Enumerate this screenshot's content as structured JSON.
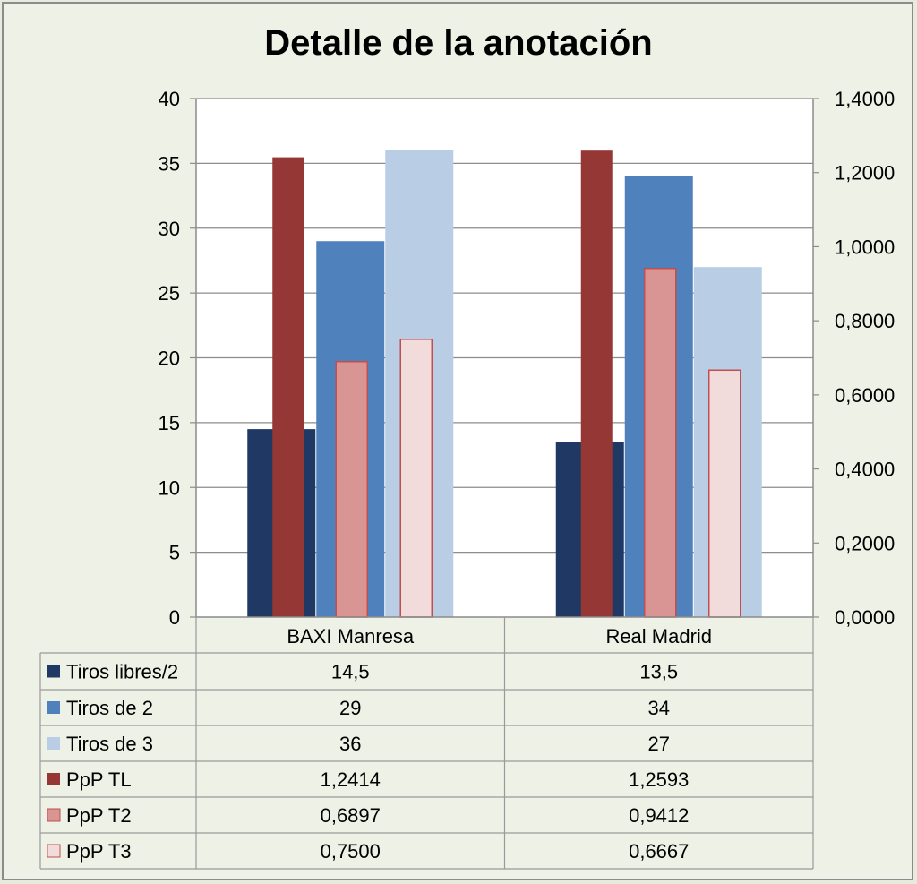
{
  "chart_data": {
    "type": "bar",
    "title": "Detalle de la anotación",
    "categories": [
      "BAXI Manresa",
      "Real Madrid"
    ],
    "y_left": {
      "range": [
        0,
        40
      ],
      "ticks": [
        "0",
        "5",
        "10",
        "15",
        "20",
        "25",
        "30",
        "35",
        "40"
      ],
      "tick_values": [
        0,
        5,
        10,
        15,
        20,
        25,
        30,
        35,
        40
      ]
    },
    "y_right": {
      "range": [
        0,
        1.4
      ],
      "ticks": [
        "0,0000",
        "0,2000",
        "0,4000",
        "0,6000",
        "0,8000",
        "1,0000",
        "1,2000",
        "1,4000"
      ],
      "tick_values": [
        0,
        0.2,
        0.4,
        0.6,
        0.8,
        1.0,
        1.2,
        1.4
      ]
    },
    "grid": true,
    "series": [
      {
        "name": "Tiros libres/2",
        "axis": "left",
        "color": "#1f3864",
        "values": [
          14.5,
          13.5
        ],
        "labels": [
          "14,5",
          "13,5"
        ]
      },
      {
        "name": "Tiros de 2",
        "axis": "left",
        "color": "#4f81bd",
        "values": [
          29,
          34
        ],
        "labels": [
          "29",
          "34"
        ]
      },
      {
        "name": "Tiros de 3",
        "axis": "left",
        "color": "#b9cde5",
        "values": [
          36,
          27
        ],
        "labels": [
          "36",
          "27"
        ]
      },
      {
        "name": "PpP TL",
        "axis": "right",
        "color": "#953735",
        "values": [
          1.2414,
          1.2593
        ],
        "labels": [
          "1,2414",
          "1,2593"
        ]
      },
      {
        "name": "PpP T2",
        "axis": "right",
        "color": "#d99594",
        "values": [
          0.6897,
          0.9412
        ],
        "labels": [
          "0,6897",
          "0,9412"
        ]
      },
      {
        "name": "PpP T3",
        "axis": "right",
        "color": "#f2dcdb",
        "values": [
          0.75,
          0.6667
        ],
        "labels": [
          "0,7500",
          "0,6667"
        ]
      }
    ],
    "legend": "data-table"
  }
}
